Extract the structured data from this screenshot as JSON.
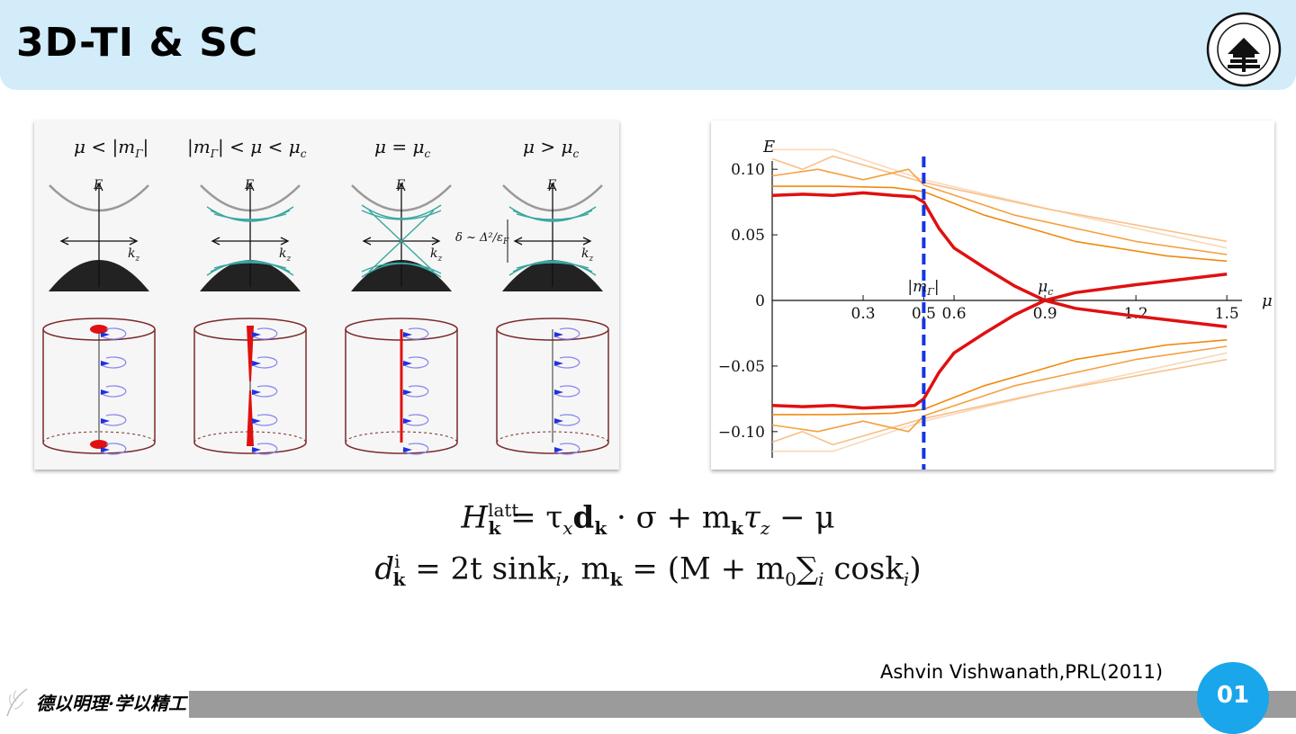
{
  "header": {
    "title": "3D-TI & SC"
  },
  "left_figure": {
    "panel_labels": [
      "μ < |m",
      "|m",
      "μ = μ",
      "μ > μ"
    ],
    "panel_label_subs": [
      "Γ",
      "Γ",
      "c",
      "c"
    ],
    "panel_label_tails": [
      "|",
      "| < μ < μ",
      "",
      ""
    ],
    "tail_subs": [
      "",
      "c",
      "",
      ""
    ],
    "axis_e": "E",
    "axis_k": "k",
    "axis_k_sub": "z",
    "gap_annotation": "δ ~ Δ²/ε",
    "gap_annotation_sub": "F"
  },
  "right_figure": {
    "chart_data": {
      "type": "line",
      "xlabel": "μ",
      "ylabel": "E",
      "xlim": [
        0,
        1.55
      ],
      "ylim": [
        -0.12,
        0.12
      ],
      "x_ticks": [
        "0.3",
        "0.5",
        "0.6",
        "0.9",
        "1.2",
        "1.5"
      ],
      "x_tick_values": [
        0.3,
        0.5,
        0.6,
        0.9,
        1.2,
        1.5
      ],
      "y_ticks": [
        "0.10",
        "0.05",
        "0",
        "−0.05",
        "−0.10"
      ],
      "y_tick_values": [
        0.1,
        0.05,
        0,
        -0.05,
        -0.1
      ],
      "annotations": [
        {
          "text": "|m",
          "sub": "Γ",
          "tail": "|",
          "x": 0.5
        },
        {
          "text": "μ",
          "sub": "c",
          "x": 0.9
        }
      ],
      "vertical_marker": {
        "x": 0.5,
        "style": "dashed",
        "color": "#1536e6"
      },
      "series": [
        {
          "color": "#e01010",
          "points": [
            [
              0,
              0.08
            ],
            [
              0.1,
              0.081
            ],
            [
              0.2,
              0.08
            ],
            [
              0.3,
              0.082
            ],
            [
              0.4,
              0.08
            ],
            [
              0.47,
              0.079
            ],
            [
              0.5,
              0.075
            ],
            [
              0.55,
              0.055
            ],
            [
              0.6,
              0.04
            ],
            [
              0.7,
              0.025
            ],
            [
              0.8,
              0.011
            ],
            [
              0.9,
              0.0
            ],
            [
              1.0,
              0.006
            ],
            [
              1.2,
              0.012
            ],
            [
              1.5,
              0.02
            ]
          ]
        },
        {
          "color": "#e01010",
          "points": [
            [
              0,
              -0.08
            ],
            [
              0.1,
              -0.081
            ],
            [
              0.2,
              -0.08
            ],
            [
              0.3,
              -0.082
            ],
            [
              0.4,
              -0.081
            ],
            [
              0.47,
              -0.08
            ],
            [
              0.5,
              -0.075
            ],
            [
              0.55,
              -0.055
            ],
            [
              0.6,
              -0.04
            ],
            [
              0.7,
              -0.025
            ],
            [
              0.8,
              -0.011
            ],
            [
              0.9,
              0.0
            ],
            [
              1.0,
              -0.006
            ],
            [
              1.2,
              -0.012
            ],
            [
              1.5,
              -0.02
            ]
          ]
        },
        {
          "color": "#f08a10",
          "points": [
            [
              0,
              0.087
            ],
            [
              0.2,
              0.087
            ],
            [
              0.4,
              0.086
            ],
            [
              0.5,
              0.083
            ],
            [
              0.7,
              0.065
            ],
            [
              1.0,
              0.045
            ],
            [
              1.3,
              0.034
            ],
            [
              1.5,
              0.03
            ]
          ]
        },
        {
          "color": "#f08a10",
          "points": [
            [
              0,
              -0.087
            ],
            [
              0.2,
              -0.087
            ],
            [
              0.4,
              -0.086
            ],
            [
              0.5,
              -0.083
            ],
            [
              0.7,
              -0.065
            ],
            [
              1.0,
              -0.045
            ],
            [
              1.3,
              -0.034
            ],
            [
              1.5,
              -0.03
            ]
          ]
        },
        {
          "color": "#f4a040",
          "points": [
            [
              0,
              0.095
            ],
            [
              0.15,
              0.1
            ],
            [
              0.3,
              0.092
            ],
            [
              0.45,
              0.1
            ],
            [
              0.5,
              0.088
            ],
            [
              0.8,
              0.065
            ],
            [
              1.2,
              0.045
            ],
            [
              1.5,
              0.035
            ]
          ]
        },
        {
          "color": "#f4a040",
          "points": [
            [
              0,
              -0.095
            ],
            [
              0.15,
              -0.1
            ],
            [
              0.3,
              -0.092
            ],
            [
              0.45,
              -0.1
            ],
            [
              0.5,
              -0.088
            ],
            [
              0.8,
              -0.065
            ],
            [
              1.2,
              -0.045
            ],
            [
              1.5,
              -0.035
            ]
          ]
        },
        {
          "color": "#f8c088",
          "points": [
            [
              0,
              0.108
            ],
            [
              0.1,
              0.1
            ],
            [
              0.2,
              0.11
            ],
            [
              0.35,
              0.1
            ],
            [
              0.5,
              0.09
            ],
            [
              0.9,
              0.07
            ],
            [
              1.5,
              0.045
            ]
          ]
        },
        {
          "color": "#f8c088",
          "points": [
            [
              0,
              -0.108
            ],
            [
              0.1,
              -0.1
            ],
            [
              0.2,
              -0.11
            ],
            [
              0.35,
              -0.1
            ],
            [
              0.5,
              -0.09
            ],
            [
              0.9,
              -0.07
            ],
            [
              1.5,
              -0.045
            ]
          ]
        },
        {
          "color": "#fad8b8",
          "points": [
            [
              0,
              0.115
            ],
            [
              0.2,
              0.115
            ],
            [
              0.5,
              0.092
            ],
            [
              1.0,
              0.065
            ],
            [
              1.5,
              0.04
            ]
          ]
        },
        {
          "color": "#fad8b8",
          "points": [
            [
              0,
              -0.115
            ],
            [
              0.2,
              -0.115
            ],
            [
              0.5,
              -0.092
            ],
            [
              1.0,
              -0.065
            ],
            [
              1.5,
              -0.04
            ]
          ]
        }
      ]
    }
  },
  "equations": {
    "line1": {
      "H": "H",
      "H_sup": "latt",
      "H_sub": "k",
      "rest": " = τ",
      "tau_sub": "x",
      "d": "d",
      "d_sub": "k",
      "rest2": " · σ + m",
      "m_sub": "k",
      "rest3": "τ",
      "tz_sub": "z",
      "rest4": " − μ"
    },
    "line2": {
      "d": "d",
      "d_sup": "i",
      "d_sub": "k",
      "rest": " = 2t sink",
      "ki_sub": "i",
      "rest2": ", m",
      "m_sub": "k",
      "rest3": " = (M + m",
      "m0_sub": "0",
      "sum": "∑",
      "sum_sub": "i",
      "rest4": " cosk",
      "ki2_sub": "i",
      "rest5": ")"
    }
  },
  "citation": "Ashvin Vishwanath,PRL(2011)",
  "footer": {
    "motto": "德以明理·学以精工",
    "page_number": "01"
  },
  "colors": {
    "header_bg": "#d3ecf9",
    "badge": "#1aa6ea",
    "footer_bar": "#9b9b9b",
    "red_line": "#e01010",
    "orange_line": "#f08a10",
    "dashed_marker": "#1536e6"
  }
}
